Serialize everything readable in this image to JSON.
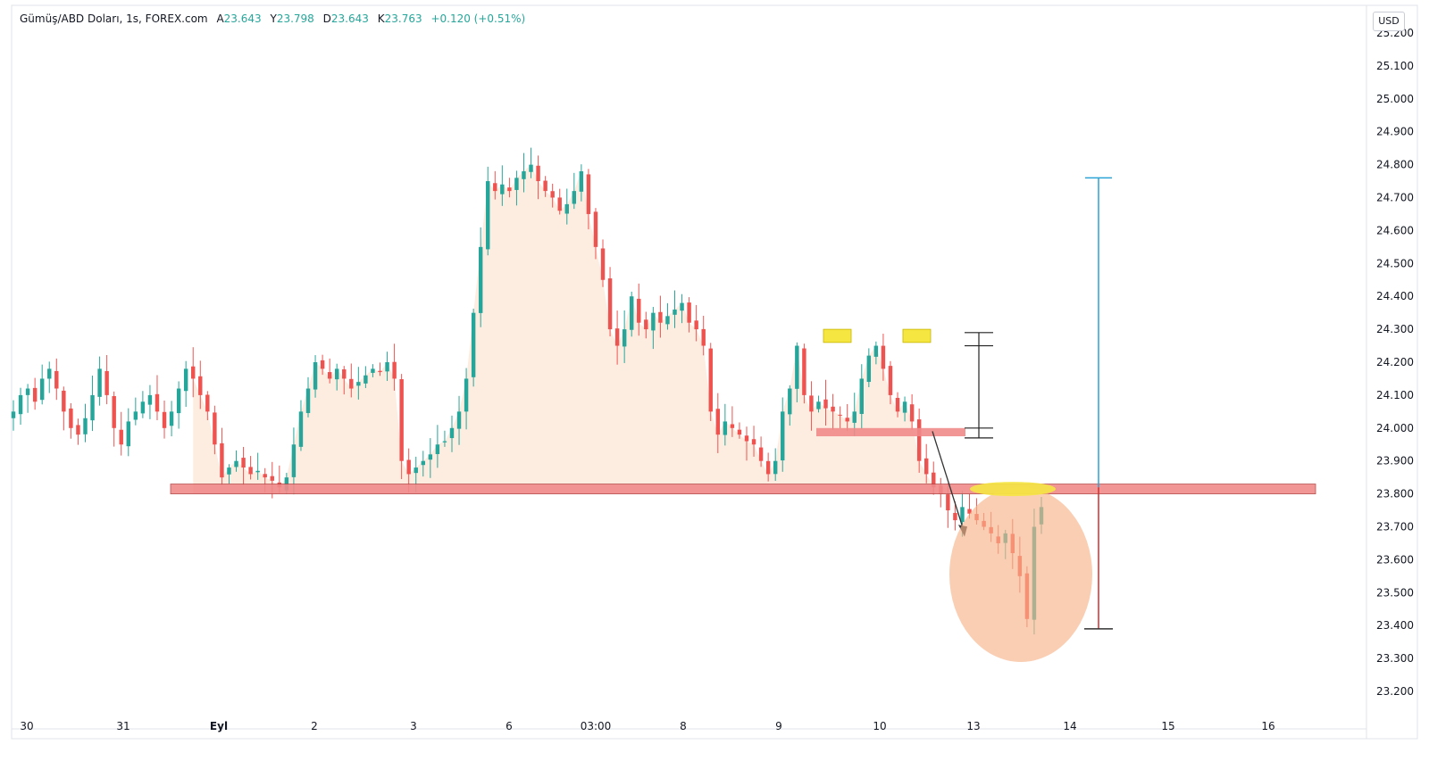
{
  "legend": {
    "symbol": "Gümüş/ABD Doları, 1s, FOREX.com",
    "open_label": "A",
    "open": "23.643",
    "high_label": "Y",
    "high": "23.798",
    "low_label": "D",
    "low": "23.643",
    "close_label": "K",
    "close": "23.763",
    "change": "+0.120 (+0.51%)"
  },
  "currency": "USD",
  "colors": {
    "up": "#26a69a",
    "down": "#ef5350",
    "area": "#fde8da",
    "zone": "#f08a8a",
    "highlight": "#f5e642",
    "circle": "#f8b48a",
    "blue_line": "#2ba3d6",
    "red_line": "#d32f2f"
  },
  "chart_data": {
    "type": "candlestick",
    "ylim": [
      23.15,
      25.23
    ],
    "yticks": [
      "25.200",
      "25.100",
      "25.000",
      "24.900",
      "24.800",
      "24.700",
      "24.600",
      "24.500",
      "24.400",
      "24.300",
      "24.200",
      "24.100",
      "24.000",
      "23.900",
      "23.800",
      "23.700",
      "23.600",
      "23.500",
      "23.400",
      "23.300",
      "23.200"
    ],
    "xticks": [
      "30",
      "31",
      "Eyl",
      "2",
      "3",
      "6",
      "03:00",
      "8",
      "9",
      "10",
      "13",
      "14",
      "15",
      "16"
    ],
    "xtick_bold": "Eyl",
    "close_path": [
      24.05,
      24.1,
      24.12,
      24.08,
      24.15,
      24.18,
      24.12,
      24.05,
      24.0,
      23.98,
      24.03,
      24.1,
      24.18,
      24.1,
      24.0,
      23.95,
      24.02,
      24.05,
      24.08,
      24.1,
      24.05,
      24.0,
      24.05,
      24.12,
      24.18,
      24.15,
      24.1,
      24.05,
      23.95,
      23.85,
      23.88,
      23.9,
      23.88,
      23.86,
      23.87,
      23.85,
      23.84,
      23.82,
      23.85,
      23.95,
      24.05,
      24.12,
      24.2,
      24.18,
      24.15,
      24.18,
      24.15,
      24.12,
      24.14,
      24.16,
      24.18,
      24.17,
      24.2,
      24.15,
      23.9,
      23.86,
      23.88,
      23.9,
      23.92,
      23.95,
      23.96,
      24.0,
      24.05,
      24.15,
      24.35,
      24.55,
      24.75,
      24.72,
      24.74,
      24.72,
      24.76,
      24.78,
      24.8,
      24.75,
      24.72,
      24.7,
      24.66,
      24.68,
      24.72,
      24.78,
      24.65,
      24.55,
      24.45,
      24.3,
      24.25,
      24.3,
      24.4,
      24.32,
      24.3,
      24.35,
      24.32,
      24.34,
      24.36,
      24.38,
      24.32,
      24.3,
      24.25,
      24.05,
      23.98,
      24.02,
      24.0,
      23.98,
      23.96,
      23.95,
      23.9,
      23.86,
      23.9,
      24.05,
      24.12,
      24.25,
      24.1,
      24.05,
      24.08,
      24.06,
      24.05,
      24.04,
      24.02,
      24.05,
      24.15,
      24.22,
      24.25,
      24.18,
      24.1,
      24.05,
      24.08,
      24.02,
      23.9,
      23.86,
      23.82,
      23.8,
      23.75,
      23.72,
      23.76,
      23.74,
      23.72,
      23.7,
      23.68,
      23.65,
      23.68,
      23.62,
      23.55,
      23.42,
      23.7,
      23.76
    ],
    "last_close": 23.763,
    "annotations": {
      "support_zone": [
        23.8,
        23.83
      ],
      "neckline_zone": [
        23.975,
        24.0
      ],
      "double_top_marks": [
        24.28,
        24.28
      ],
      "pattern_height_bracket": [
        23.97,
        24.29
      ],
      "target_up_line": [
        23.82,
        24.76
      ],
      "target_down_line": [
        23.39,
        23.82
      ]
    }
  }
}
